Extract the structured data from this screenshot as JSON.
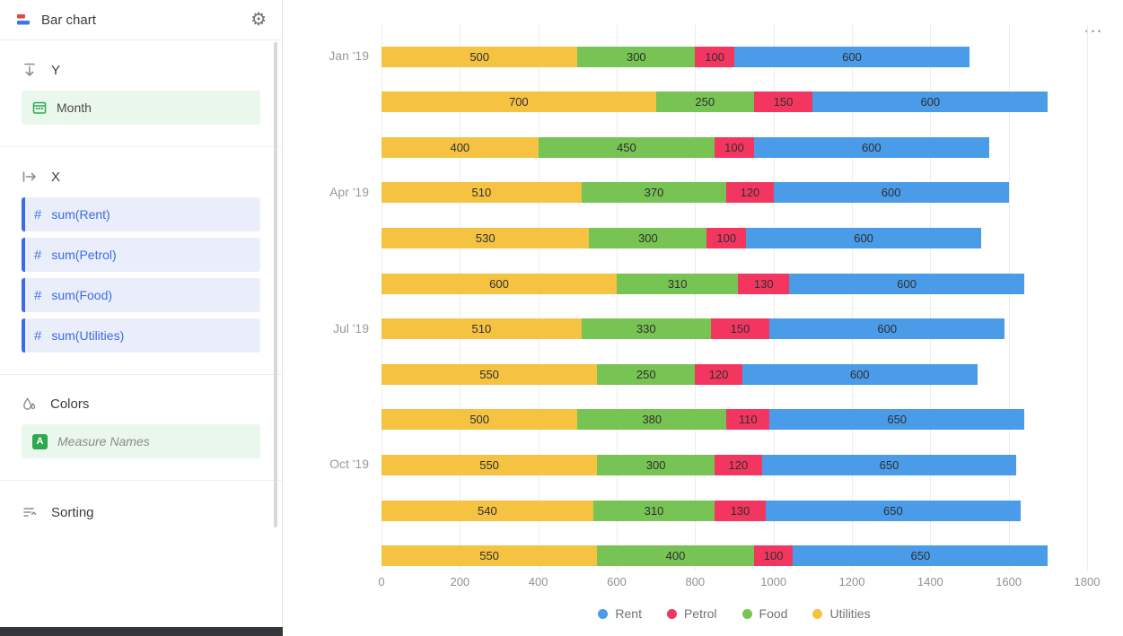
{
  "sidebar": {
    "title": "Bar chart",
    "sections": {
      "y": {
        "label": "Y",
        "fields": [
          {
            "label": "Month"
          }
        ]
      },
      "x": {
        "label": "X",
        "fields": [
          {
            "label": "sum(Rent)"
          },
          {
            "label": "sum(Petrol)"
          },
          {
            "label": "sum(Food)"
          },
          {
            "label": "sum(Utilities)"
          }
        ]
      },
      "colors": {
        "label": "Colors",
        "fields": [
          {
            "label": "Measure Names"
          }
        ]
      },
      "sorting": {
        "label": "Sorting"
      }
    }
  },
  "icons": {
    "gear": "⚙",
    "menu": "⋯",
    "hash": "#",
    "measure_badge": "A"
  },
  "palette": {
    "pill_blue_accent": "#3d6be5",
    "pill_blue_bg": "#eaeefb",
    "pill_green_bg": "#eaf7ed",
    "measure_green": "#2fa84f"
  },
  "chart_data": {
    "type": "bar",
    "orientation": "horizontal",
    "stacked": true,
    "grid": true,
    "legend_position": "bottom",
    "xlim": [
      0,
      1800
    ],
    "x_ticks": [
      0,
      200,
      400,
      600,
      800,
      1000,
      1200,
      1400,
      1600,
      1800
    ],
    "categories": [
      "Jan '19",
      "",
      "",
      "Apr '19",
      "",
      "",
      "Jul '19",
      "",
      "",
      "Oct '19",
      "",
      ""
    ],
    "series": [
      {
        "name": "Utilities",
        "color": "#F5C242",
        "values": [
          500,
          700,
          400,
          510,
          530,
          600,
          510,
          550,
          500,
          550,
          540,
          550
        ]
      },
      {
        "name": "Food",
        "color": "#77C353",
        "values": [
          300,
          250,
          450,
          370,
          300,
          310,
          330,
          250,
          380,
          300,
          310,
          400
        ]
      },
      {
        "name": "Petrol",
        "color": "#F2365F",
        "values": [
          100,
          150,
          100,
          120,
          100,
          130,
          150,
          120,
          110,
          120,
          130,
          100
        ]
      },
      {
        "name": "Rent",
        "color": "#4A9BE8",
        "values": [
          600,
          600,
          600,
          600,
          600,
          600,
          600,
          600,
          650,
          650,
          650,
          650
        ]
      }
    ],
    "legend": [
      {
        "name": "Rent",
        "color": "#4A9BE8"
      },
      {
        "name": "Petrol",
        "color": "#F2365F"
      },
      {
        "name": "Food",
        "color": "#77C353"
      },
      {
        "name": "Utilities",
        "color": "#F5C242"
      }
    ]
  }
}
